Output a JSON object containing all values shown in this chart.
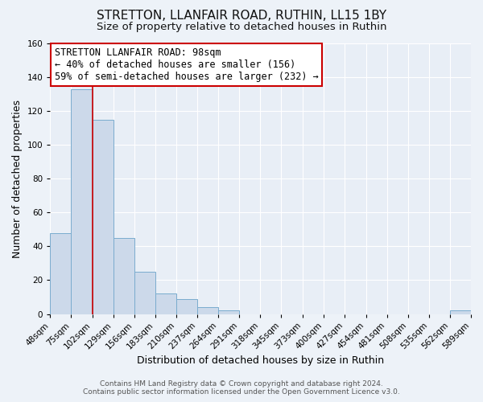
{
  "title": "STRETTON, LLANFAIR ROAD, RUTHIN, LL15 1BY",
  "subtitle": "Size of property relative to detached houses in Ruthin",
  "xlabel": "Distribution of detached houses by size in Ruthin",
  "ylabel": "Number of detached properties",
  "footer_line1": "Contains HM Land Registry data © Crown copyright and database right 2024.",
  "footer_line2": "Contains public sector information licensed under the Open Government Licence v3.0.",
  "bin_edges": [
    48,
    75,
    102,
    129,
    156,
    183,
    210,
    237,
    264,
    291,
    318,
    345,
    373,
    400,
    427,
    454,
    481,
    508,
    535,
    562,
    589
  ],
  "bin_labels": [
    "48sqm",
    "75sqm",
    "102sqm",
    "129sqm",
    "156sqm",
    "183sqm",
    "210sqm",
    "237sqm",
    "264sqm",
    "291sqm",
    "318sqm",
    "345sqm",
    "373sqm",
    "400sqm",
    "427sqm",
    "454sqm",
    "481sqm",
    "508sqm",
    "535sqm",
    "562sqm",
    "589sqm"
  ],
  "counts": [
    48,
    133,
    115,
    45,
    25,
    12,
    9,
    4,
    2,
    0,
    0,
    0,
    0,
    0,
    0,
    0,
    0,
    0,
    0,
    2,
    0
  ],
  "bar_color": "#ccd9ea",
  "bar_edge_color": "#7aacce",
  "vline_x": 102,
  "vline_color": "#cc0000",
  "annotation_title": "STRETTON LLANFAIR ROAD: 98sqm",
  "annotation_line2": "← 40% of detached houses are smaller (156)",
  "annotation_line3": "59% of semi-detached houses are larger (232) →",
  "annotation_box_color": "#ffffff",
  "annotation_box_edge": "#cc0000",
  "ylim": [
    0,
    160
  ],
  "xlim_min": 48,
  "xlim_max": 589,
  "background_color": "#edf2f8",
  "plot_background": "#e8eef6",
  "grid_color": "#ffffff",
  "title_fontsize": 11,
  "subtitle_fontsize": 9.5,
  "axis_label_fontsize": 9,
  "tick_fontsize": 7.5,
  "annotation_fontsize": 8.5,
  "footer_fontsize": 6.5
}
